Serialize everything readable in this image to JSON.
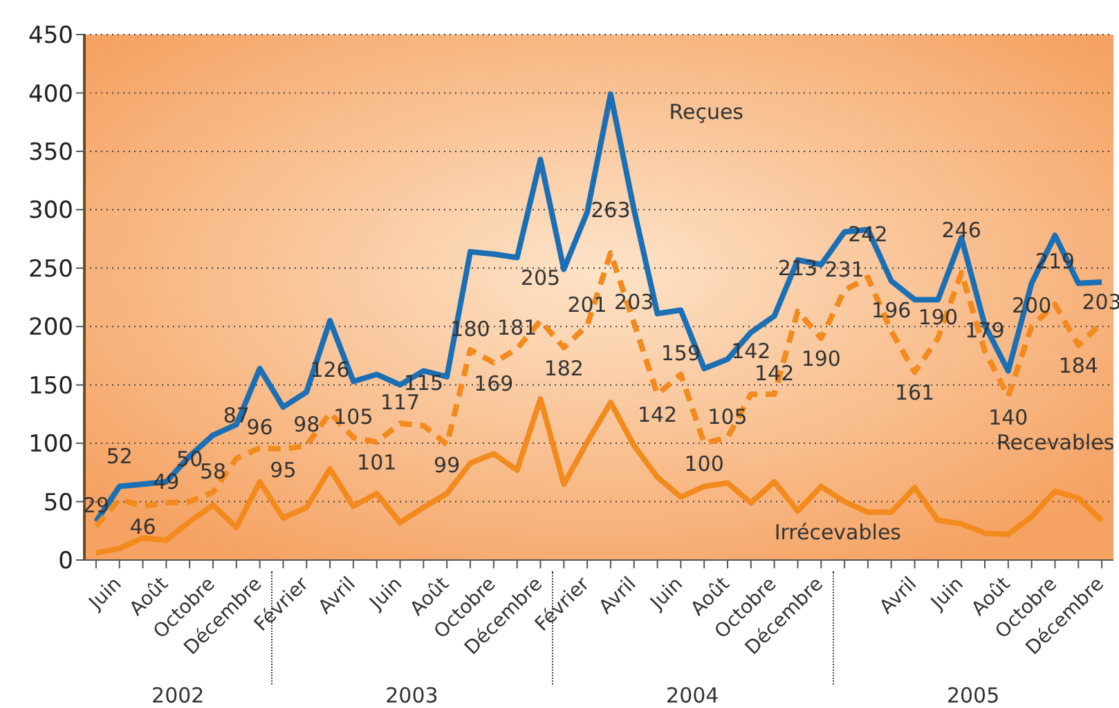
{
  "chart_data": {
    "type": "line",
    "categories": [
      null,
      "Juin",
      null,
      "Août",
      null,
      "Octobre",
      null,
      "Décembre",
      null,
      "Février",
      null,
      "Avril",
      null,
      "Juin",
      null,
      "Août",
      null,
      "Octobre",
      null,
      "Décembre",
      null,
      "Février",
      null,
      "Avril",
      null,
      "Juin",
      null,
      "Août",
      null,
      "Octobre",
      null,
      "Décembre",
      null,
      null,
      null,
      "Avril",
      null,
      "Juin",
      null,
      "Août",
      null,
      "Octobre",
      null,
      "Décembre"
    ],
    "series": [
      {
        "name": "Reçues",
        "color": "#1a6fb5",
        "line_style": "solid",
        "values": [
          33,
          63,
          65,
          67,
          89,
          107,
          116,
          164,
          131,
          144,
          205,
          153,
          159,
          150,
          162,
          157,
          264,
          262,
          259,
          343,
          249,
          298,
          399,
          300,
          211,
          214,
          164,
          172,
          195,
          209,
          257,
          253,
          281,
          283,
          239,
          223,
          223,
          276,
          201,
          162,
          237,
          278,
          237,
          238
        ]
      },
      {
        "name": "Recevables",
        "color": "#f28a1e",
        "line_style": "dashed",
        "values": [
          29,
          52,
          46,
          49,
          50,
          58,
          87,
          96,
          95,
          98,
          126,
          105,
          101,
          117,
          115,
          99,
          180,
          169,
          181,
          205,
          182,
          201,
          263,
          203,
          142,
          159,
          100,
          105,
          142,
          142,
          213,
          190,
          231,
          242,
          196,
          161,
          190,
          246,
          179,
          140,
          200,
          219,
          184,
          203
        ],
        "value_labels": [
          "29",
          "52",
          "46",
          "49",
          "50",
          "58",
          "87",
          "96",
          "95",
          "98",
          "126",
          "105",
          "101",
          "117",
          "115",
          "99",
          "180",
          "169",
          "181",
          "205",
          "182",
          "201",
          "263",
          "203",
          "142",
          "159",
          "100",
          "105",
          "142",
          "142",
          "213",
          "190",
          "231",
          "242",
          "196",
          "161",
          "190",
          "246",
          "179",
          "140",
          "200",
          "219",
          "184",
          "203"
        ]
      },
      {
        "name": "Irrécevables",
        "color": "#f28a1e",
        "line_style": "solid",
        "values": [
          6,
          10,
          19,
          17,
          33,
          47,
          28,
          67,
          36,
          45,
          78,
          46,
          57,
          32,
          45,
          57,
          83,
          91,
          77,
          138,
          65,
          101,
          135,
          98,
          71,
          54,
          63,
          66,
          49,
          67,
          42,
          63,
          50,
          41,
          41,
          62,
          34,
          31,
          23,
          22,
          37,
          59,
          53,
          34
        ]
      }
    ],
    "ylim": [
      0,
      450
    ],
    "yticks": [
      0,
      50,
      100,
      150,
      200,
      250,
      300,
      350,
      400,
      450
    ],
    "grid": "y",
    "legend": false,
    "marker": "none",
    "annotations": [
      "2002",
      "2003",
      "2004",
      "2005"
    ]
  }
}
